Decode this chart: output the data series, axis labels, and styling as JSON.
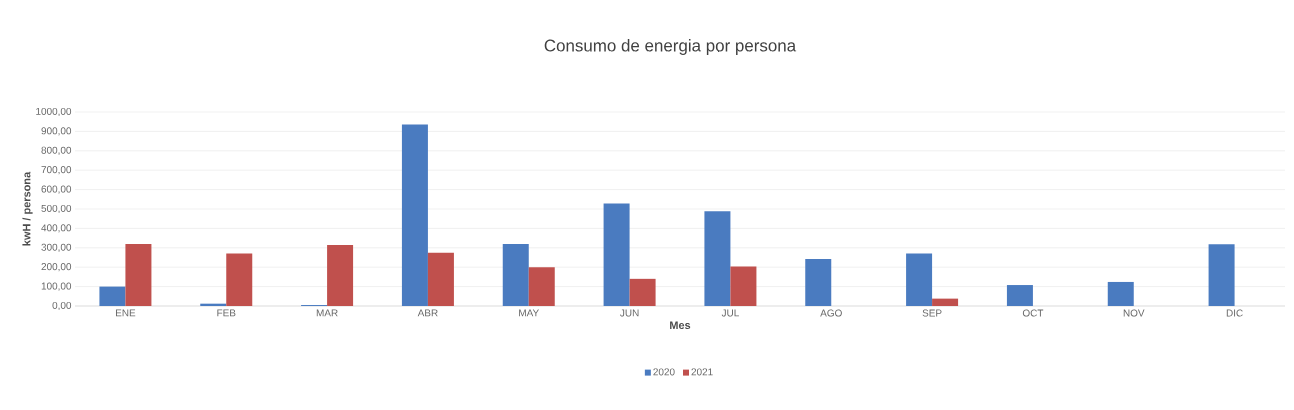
{
  "chart_data": {
    "type": "bar",
    "title": "Consumo de energia por persona",
    "xlabel": "Mes",
    "ylabel": "kwH / persona",
    "categories": [
      "ENE",
      "FEB",
      "MAR",
      "ABR",
      "MAY",
      "JUN",
      "JUL",
      "AGO",
      "SEP",
      "OCT",
      "NOV",
      "DIC"
    ],
    "series": [
      {
        "name": "2020",
        "color": "#4a7bc0",
        "values": [
          100,
          12,
          5,
          935,
          320,
          528,
          488,
          242,
          270,
          108,
          124,
          318
        ]
      },
      {
        "name": "2021",
        "color": "#c0504d",
        "values": [
          320,
          270,
          315,
          275,
          200,
          140,
          204,
          null,
          38,
          null,
          null,
          null
        ]
      }
    ],
    "ylim": [
      0,
      1000
    ],
    "yticks": [
      {
        "value": 0,
        "label": "0,00"
      },
      {
        "value": 100,
        "label": "100,00"
      },
      {
        "value": 200,
        "label": "200,00"
      },
      {
        "value": 300,
        "label": "300,00"
      },
      {
        "value": 400,
        "label": "400,00"
      },
      {
        "value": 500,
        "label": "500,00"
      },
      {
        "value": 600,
        "label": "600,00"
      },
      {
        "value": 700,
        "label": "700,00"
      },
      {
        "value": 800,
        "label": "800,00"
      },
      {
        "value": 900,
        "label": "900,00"
      },
      {
        "value": 1000,
        "label": "1000,00"
      }
    ],
    "grid": "y",
    "legend": "bottom"
  }
}
